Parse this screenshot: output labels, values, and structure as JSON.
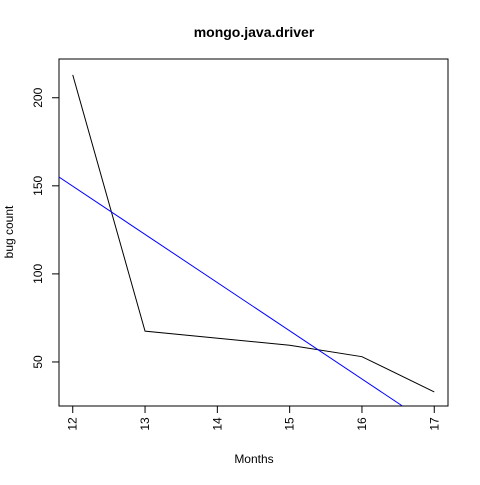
{
  "chart_data": {
    "type": "line",
    "title": "mongo.java.driver",
    "xlabel": "Months",
    "ylabel": "bug count",
    "xlim": [
      11.81,
      17.19
    ],
    "ylim": [
      25,
      222
    ],
    "x_ticks": [
      12,
      13,
      14,
      15,
      16,
      17
    ],
    "y_ticks": [
      50,
      100,
      150,
      200
    ],
    "x_tick_labels": [
      "12",
      "13",
      "14",
      "15",
      "16",
      "17"
    ],
    "y_tick_labels": [
      "50",
      "100",
      "150",
      "200"
    ],
    "grid": false,
    "legend": "none",
    "series": [
      {
        "color": "#000000",
        "x": [
          12,
          13,
          15,
          16,
          17
        ],
        "y": [
          213,
          67.5,
          59.5,
          53,
          33
        ]
      },
      {
        "style": "fitted-line",
        "color": "#0000ff",
        "x": [
          11.81,
          16.56
        ],
        "y": [
          155,
          25
        ]
      }
    ]
  }
}
